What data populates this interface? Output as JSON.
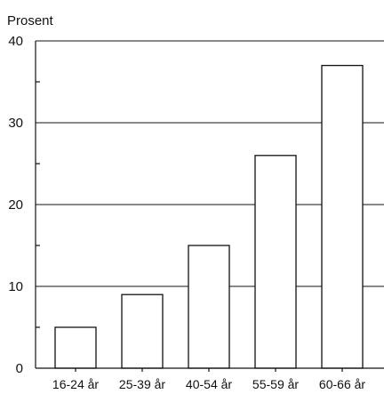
{
  "chart_data": {
    "type": "bar",
    "categories": [
      "16-24 år",
      "25-39 år",
      "40-54 år",
      "55-59 år",
      "60-66 år"
    ],
    "values": [
      5,
      9,
      15,
      26,
      37
    ],
    "ylabel": "Prosent",
    "ylim": [
      0,
      40
    ],
    "yticks": [
      0,
      10,
      20,
      30,
      40
    ],
    "grid": true
  }
}
